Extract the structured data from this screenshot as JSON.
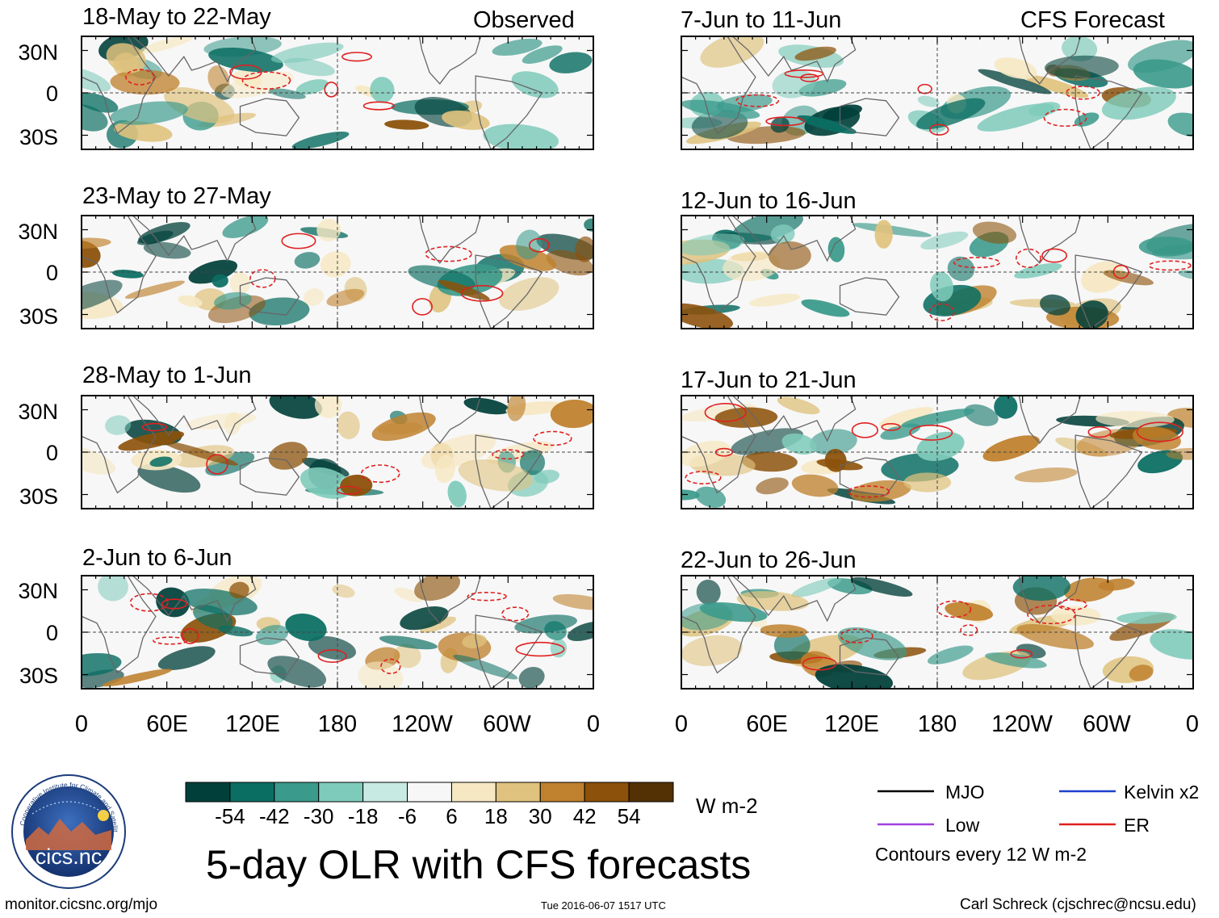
{
  "figure": {
    "main_title": "5-day OLR with CFS forecasts",
    "observed_label": "Observed",
    "forecast_label": "CFS Forecast",
    "footer_left": "monitor.cicsnc.org/mjo",
    "footer_center": "Tue 2016-06-07 1517 UTC",
    "footer_right": "Carl Schreck (cjschrec@ncsu.edu)",
    "logo_text": "cics.nc",
    "logo_ring_text": "Cooperative Institute for Climate and Satellites"
  },
  "chart_data": {
    "type": "heatmap",
    "variable": "OLR anomaly",
    "units": "W m-2",
    "lat_ticks": [
      "30N",
      "0",
      "30S"
    ],
    "lon_ticks": [
      "0",
      "60E",
      "120E",
      "180",
      "120W",
      "60W",
      "0"
    ],
    "panels": [
      {
        "title": "18-May to 22-May",
        "kind": "observed"
      },
      {
        "title": "23-May to 27-May",
        "kind": "observed"
      },
      {
        "title": "28-May to 1-Jun",
        "kind": "observed"
      },
      {
        "title": "2-Jun to 6-Jun",
        "kind": "observed"
      },
      {
        "title": "7-Jun to 11-Jun",
        "kind": "forecast"
      },
      {
        "title": "12-Jun to 16-Jun",
        "kind": "forecast"
      },
      {
        "title": "17-Jun to 21-Jun",
        "kind": "forecast"
      },
      {
        "title": "22-Jun to 26-Jun",
        "kind": "forecast"
      }
    ],
    "colorbar": {
      "colors": [
        "#01403a",
        "#0b6e63",
        "#3a9a8b",
        "#7fcbbb",
        "#c7eae3",
        "#f7f7f7",
        "#f6e8c3",
        "#dfc27d",
        "#bf812d",
        "#8c510a",
        "#543005"
      ],
      "ticks": [
        "-54",
        "-42",
        "-30",
        "-18",
        "-6",
        "6",
        "18",
        "30",
        "42",
        "54"
      ],
      "units": "W m-2"
    },
    "contour_legend": [
      {
        "label": "MJO",
        "color": "#000000"
      },
      {
        "label": "Kelvin x2",
        "color": "#1f3fd0"
      },
      {
        "label": "Low",
        "color": "#a040e0"
      },
      {
        "label": "ER",
        "color": "#e02020"
      }
    ],
    "contour_note": "Contours every 12 W m-2"
  }
}
